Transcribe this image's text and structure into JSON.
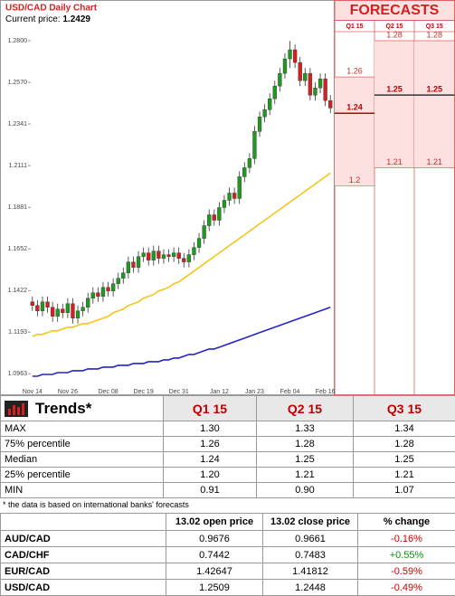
{
  "chart_data": {
    "type": "candlestick",
    "title": "USD/CAD Daily Chart",
    "current_price_label": "Current price:",
    "current_price": 1.2429,
    "categories": [
      "Nov 14",
      null,
      null,
      null,
      null,
      null,
      null,
      "Nov 26",
      null,
      null,
      null,
      null,
      null,
      null,
      null,
      "Dec 08",
      null,
      null,
      null,
      null,
      null,
      null,
      "Dec 19",
      null,
      null,
      null,
      null,
      null,
      null,
      "Dec 31",
      null,
      null,
      null,
      null,
      null,
      null,
      null,
      "Jan 12",
      null,
      null,
      null,
      null,
      null,
      null,
      "Jan 23",
      null,
      null,
      null,
      null,
      null,
      null,
      "Feb 04",
      null,
      null,
      null,
      null,
      null,
      null,
      "Feb 16",
      null
    ],
    "open": [
      1.136,
      1.134,
      1.131,
      1.136,
      1.133,
      1.128,
      1.132,
      1.13,
      1.135,
      1.127,
      1.131,
      1.133,
      1.138,
      1.141,
      1.139,
      1.144,
      1.142,
      1.146,
      1.149,
      1.152,
      1.158,
      1.155,
      1.161,
      1.163,
      1.159,
      1.164,
      1.16,
      1.162,
      1.161,
      1.163,
      1.16,
      1.158,
      1.162,
      1.166,
      1.171,
      1.178,
      1.184,
      1.181,
      1.188,
      1.192,
      1.196,
      1.193,
      1.205,
      1.21,
      1.215,
      1.23,
      1.238,
      1.242,
      1.248,
      1.255,
      1.262,
      1.27,
      1.275,
      1.268,
      1.258,
      1.262,
      1.25,
      1.254,
      1.259,
      1.247
    ],
    "high": [
      1.139,
      1.137,
      1.139,
      1.139,
      1.136,
      1.135,
      1.135,
      1.138,
      1.138,
      1.134,
      1.136,
      1.141,
      1.144,
      1.144,
      1.147,
      1.147,
      1.149,
      1.152,
      1.155,
      1.161,
      1.161,
      1.164,
      1.166,
      1.166,
      1.167,
      1.167,
      1.165,
      1.165,
      1.166,
      1.166,
      1.163,
      1.165,
      1.169,
      1.174,
      1.181,
      1.187,
      1.187,
      1.191,
      1.195,
      1.199,
      1.199,
      1.208,
      1.213,
      1.218,
      1.233,
      1.241,
      1.245,
      1.251,
      1.258,
      1.265,
      1.273,
      1.2799,
      1.278,
      1.271,
      1.265,
      1.265,
      1.257,
      1.262,
      1.262,
      1.25
    ],
    "low": [
      1.131,
      1.128,
      1.128,
      1.13,
      1.125,
      1.125,
      1.127,
      1.127,
      1.124,
      1.124,
      1.128,
      1.13,
      1.135,
      1.136,
      1.136,
      1.139,
      1.139,
      1.143,
      1.146,
      1.149,
      1.152,
      1.152,
      1.158,
      1.156,
      1.156,
      1.157,
      1.157,
      1.158,
      1.158,
      1.157,
      1.155,
      1.155,
      1.159,
      1.163,
      1.168,
      1.175,
      1.178,
      1.178,
      1.185,
      1.189,
      1.19,
      1.19,
      1.202,
      1.207,
      1.212,
      1.227,
      1.235,
      1.239,
      1.245,
      1.252,
      1.259,
      1.265,
      1.265,
      1.255,
      1.255,
      1.247,
      1.247,
      1.251,
      1.244,
      1.24
    ],
    "close": [
      1.134,
      1.131,
      1.136,
      1.133,
      1.128,
      1.132,
      1.13,
      1.135,
      1.127,
      1.131,
      1.133,
      1.138,
      1.141,
      1.139,
      1.144,
      1.142,
      1.146,
      1.149,
      1.152,
      1.158,
      1.155,
      1.161,
      1.163,
      1.159,
      1.164,
      1.16,
      1.162,
      1.161,
      1.163,
      1.16,
      1.158,
      1.162,
      1.166,
      1.171,
      1.178,
      1.184,
      1.181,
      1.188,
      1.192,
      1.196,
      1.193,
      1.205,
      1.21,
      1.215,
      1.23,
      1.238,
      1.242,
      1.248,
      1.255,
      1.262,
      1.27,
      1.275,
      1.268,
      1.258,
      1.262,
      1.25,
      1.254,
      1.259,
      1.247,
      1.2429
    ],
    "up_color": "#1f9a1f",
    "down_color": "#d42020",
    "series": [
      {
        "color": "#f5c518",
        "values": [
          1.117,
          1.118,
          1.118,
          1.119,
          1.12,
          1.12,
          1.121,
          1.122,
          1.122,
          1.123,
          1.124,
          1.124,
          1.125,
          1.126,
          1.127,
          1.128,
          1.13,
          1.131,
          1.132,
          1.134,
          1.135,
          1.136,
          1.138,
          1.139,
          1.14,
          1.142,
          1.143,
          1.144,
          1.146,
          1.147,
          1.149,
          1.151,
          1.153,
          1.155,
          1.157,
          1.159,
          1.161,
          1.163,
          1.165,
          1.167,
          1.169,
          1.171,
          1.173,
          1.175,
          1.177,
          1.179,
          1.181,
          1.183,
          1.185,
          1.187,
          1.189,
          1.191,
          1.193,
          1.195,
          1.197,
          1.199,
          1.201,
          1.203,
          1.205,
          1.207
        ]
      },
      {
        "color": "#2424c8",
        "values": [
          1.095,
          1.095,
          1.096,
          1.096,
          1.096,
          1.097,
          1.097,
          1.097,
          1.098,
          1.098,
          1.098,
          1.099,
          1.099,
          1.099,
          1.1,
          1.1,
          1.1,
          1.101,
          1.101,
          1.101,
          1.102,
          1.102,
          1.102,
          1.103,
          1.103,
          1.103,
          1.104,
          1.104,
          1.105,
          1.105,
          1.106,
          1.107,
          1.107,
          1.108,
          1.109,
          1.11,
          1.11,
          1.111,
          1.112,
          1.113,
          1.114,
          1.115,
          1.116,
          1.117,
          1.118,
          1.119,
          1.12,
          1.121,
          1.122,
          1.123,
          1.124,
          1.125,
          1.126,
          1.127,
          1.128,
          1.129,
          1.13,
          1.131,
          1.132,
          1.133
        ]
      }
    ],
    "ylim": [
      1.088,
      1.285
    ],
    "yticks": [
      {
        "value": 1.28,
        "label": "1.2800"
      },
      {
        "value": 1.257,
        "label": "1.2570"
      },
      1.2341,
      1.2111,
      1.1881,
      1.1652,
      1.1422,
      1.1193,
      1.0963
    ],
    "forecasts": {
      "title": "FORECASTS",
      "columns": [
        {
          "name": "Q1 15",
          "high": 1.26,
          "median": 1.24,
          "low": 1.2
        },
        {
          "name": "Q2 15",
          "high": 1.28,
          "median": 1.25,
          "low": 1.21
        },
        {
          "name": "Q3 15",
          "high": 1.28,
          "median": 1.25,
          "low": 1.21
        }
      ]
    }
  },
  "trends_table": {
    "title": "Trends*",
    "columns": [
      "Q1 15",
      "Q2 15",
      "Q3 15"
    ],
    "rows": [
      [
        "MAX",
        "1.30",
        "1.33",
        "1.34"
      ],
      [
        "75% percentile",
        "1.26",
        "1.28",
        "1.28"
      ],
      [
        "Median",
        "1.24",
        "1.25",
        "1.25"
      ],
      [
        "25% percentile",
        "1.20",
        "1.21",
        "1.21"
      ],
      [
        "MIN",
        "0.91",
        "0.90",
        "1.07"
      ]
    ]
  },
  "footnote": "* the data is based on international banks' forecasts",
  "fx_table": {
    "columns": [
      "13.02 open price",
      "13.02 close price",
      "% change"
    ],
    "rows": [
      [
        "AUD/CAD",
        "0.9676",
        "0.9661",
        "-0.16%"
      ],
      [
        "CAD/CHF",
        "0.7442",
        "0.7483",
        "+0.55%"
      ],
      [
        "EUR/CAD",
        "1.42647",
        "1.41812",
        "-0.59%"
      ],
      [
        "USD/CAD",
        "1.2509",
        "1.2448",
        "-0.49%"
      ]
    ]
  }
}
